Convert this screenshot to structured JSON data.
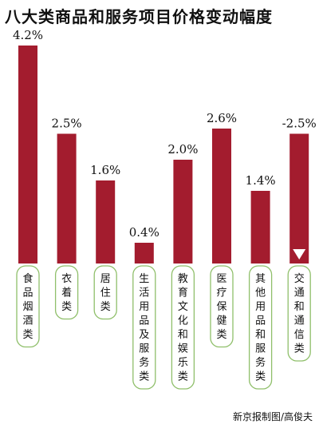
{
  "chart_data": {
    "type": "bar",
    "title": "八大类商品和服务项目价格变动幅度",
    "categories": [
      "食品烟酒类",
      "衣着类",
      "居住类",
      "生活用品及服务类",
      "教育文化和娱乐类",
      "医疗保健类",
      "其他用品和服务类",
      "交通和通信类"
    ],
    "values": [
      4.2,
      2.5,
      1.6,
      0.4,
      2.0,
      2.6,
      1.4,
      -2.5
    ],
    "value_labels": [
      "4.2%",
      "2.5%",
      "1.6%",
      "0.4%",
      "2.0%",
      "2.6%",
      "1.4%",
      "-2.5%"
    ],
    "xlabel": "",
    "ylabel": "",
    "grid": false,
    "legend": "none",
    "note": "negative value shown as a downward triangle marker with a bar drawn by magnitude"
  },
  "credit": "新京报制图/高俊夫",
  "colors": {
    "bar": "#a31c2e",
    "label_box_border": "#8fbf6a",
    "label_box_fill": "#ffffff",
    "marker": "#ffffff"
  }
}
